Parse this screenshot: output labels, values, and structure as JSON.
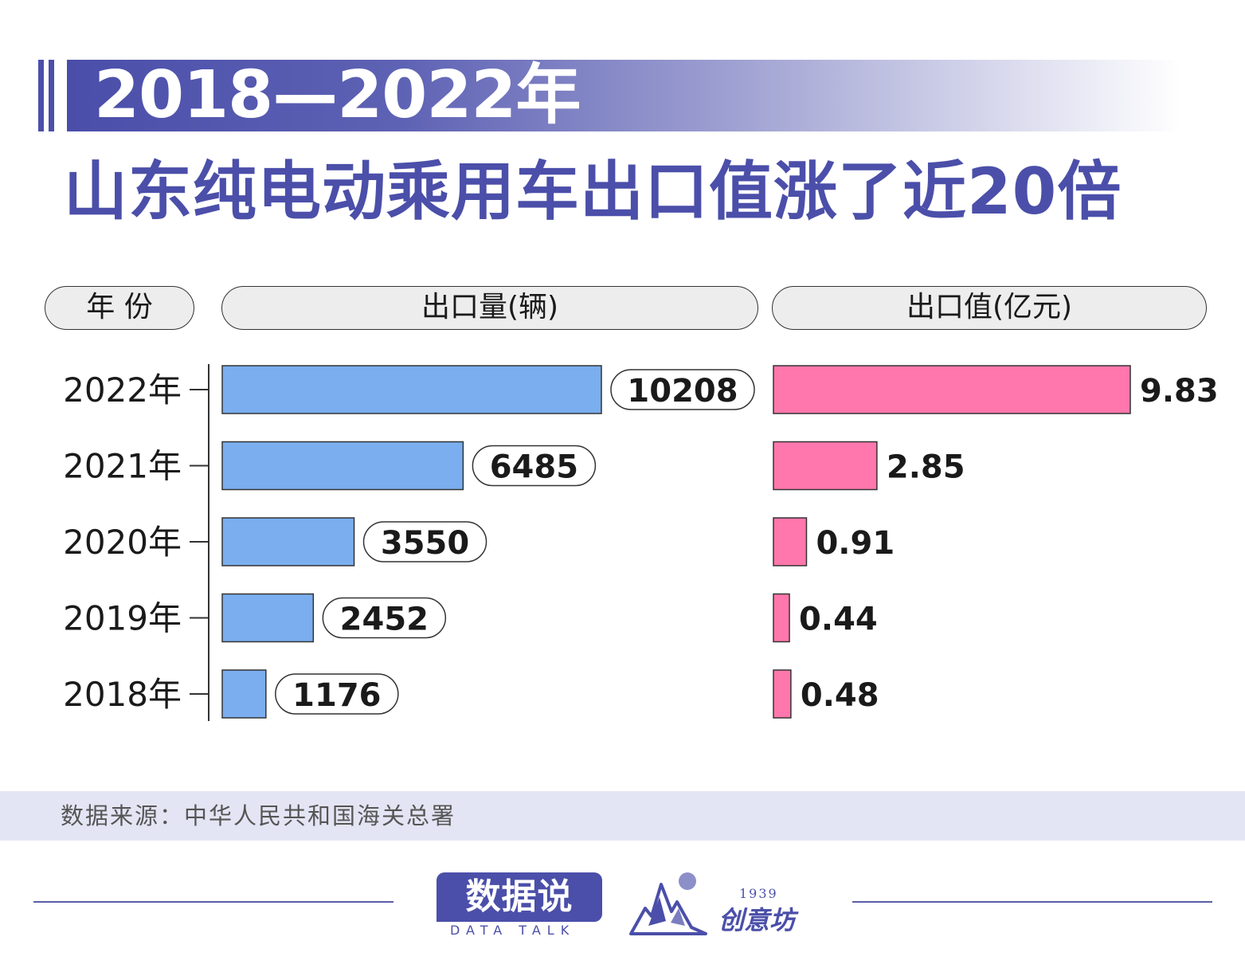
{
  "title": {
    "line1": "2018—2022年",
    "line2": "山东纯电动乘用车出口值涨了近20倍"
  },
  "headers": {
    "year": "年 份",
    "volume": "出口量(辆)",
    "value": "出口值(亿元)"
  },
  "chart_data": {
    "type": "bar",
    "orientation": "horizontal",
    "categories": [
      "2022年",
      "2021年",
      "2020年",
      "2019年",
      "2018年"
    ],
    "series": [
      {
        "name": "出口量(辆)",
        "values": [
          10208,
          6485,
          3550,
          2452,
          1176
        ],
        "labels": [
          "10208",
          "6485",
          "3550",
          "2452",
          "1176"
        ]
      },
      {
        "name": "出口值(亿元)",
        "values": [
          9.83,
          2.85,
          0.91,
          0.44,
          0.48
        ],
        "labels": [
          "9.83",
          "2.85",
          "0.91",
          "0.44",
          "0.48"
        ]
      }
    ],
    "colors": {
      "volume": "#7aaeee",
      "value": "#ff77ac",
      "axis": "#333333"
    }
  },
  "source": "数据来源：中华人民共和国海关总署",
  "footer": {
    "logo_main": "数据说",
    "logo_sub": "DATA TALK",
    "logo2_year": "1939",
    "logo2_name": "创意坊"
  }
}
